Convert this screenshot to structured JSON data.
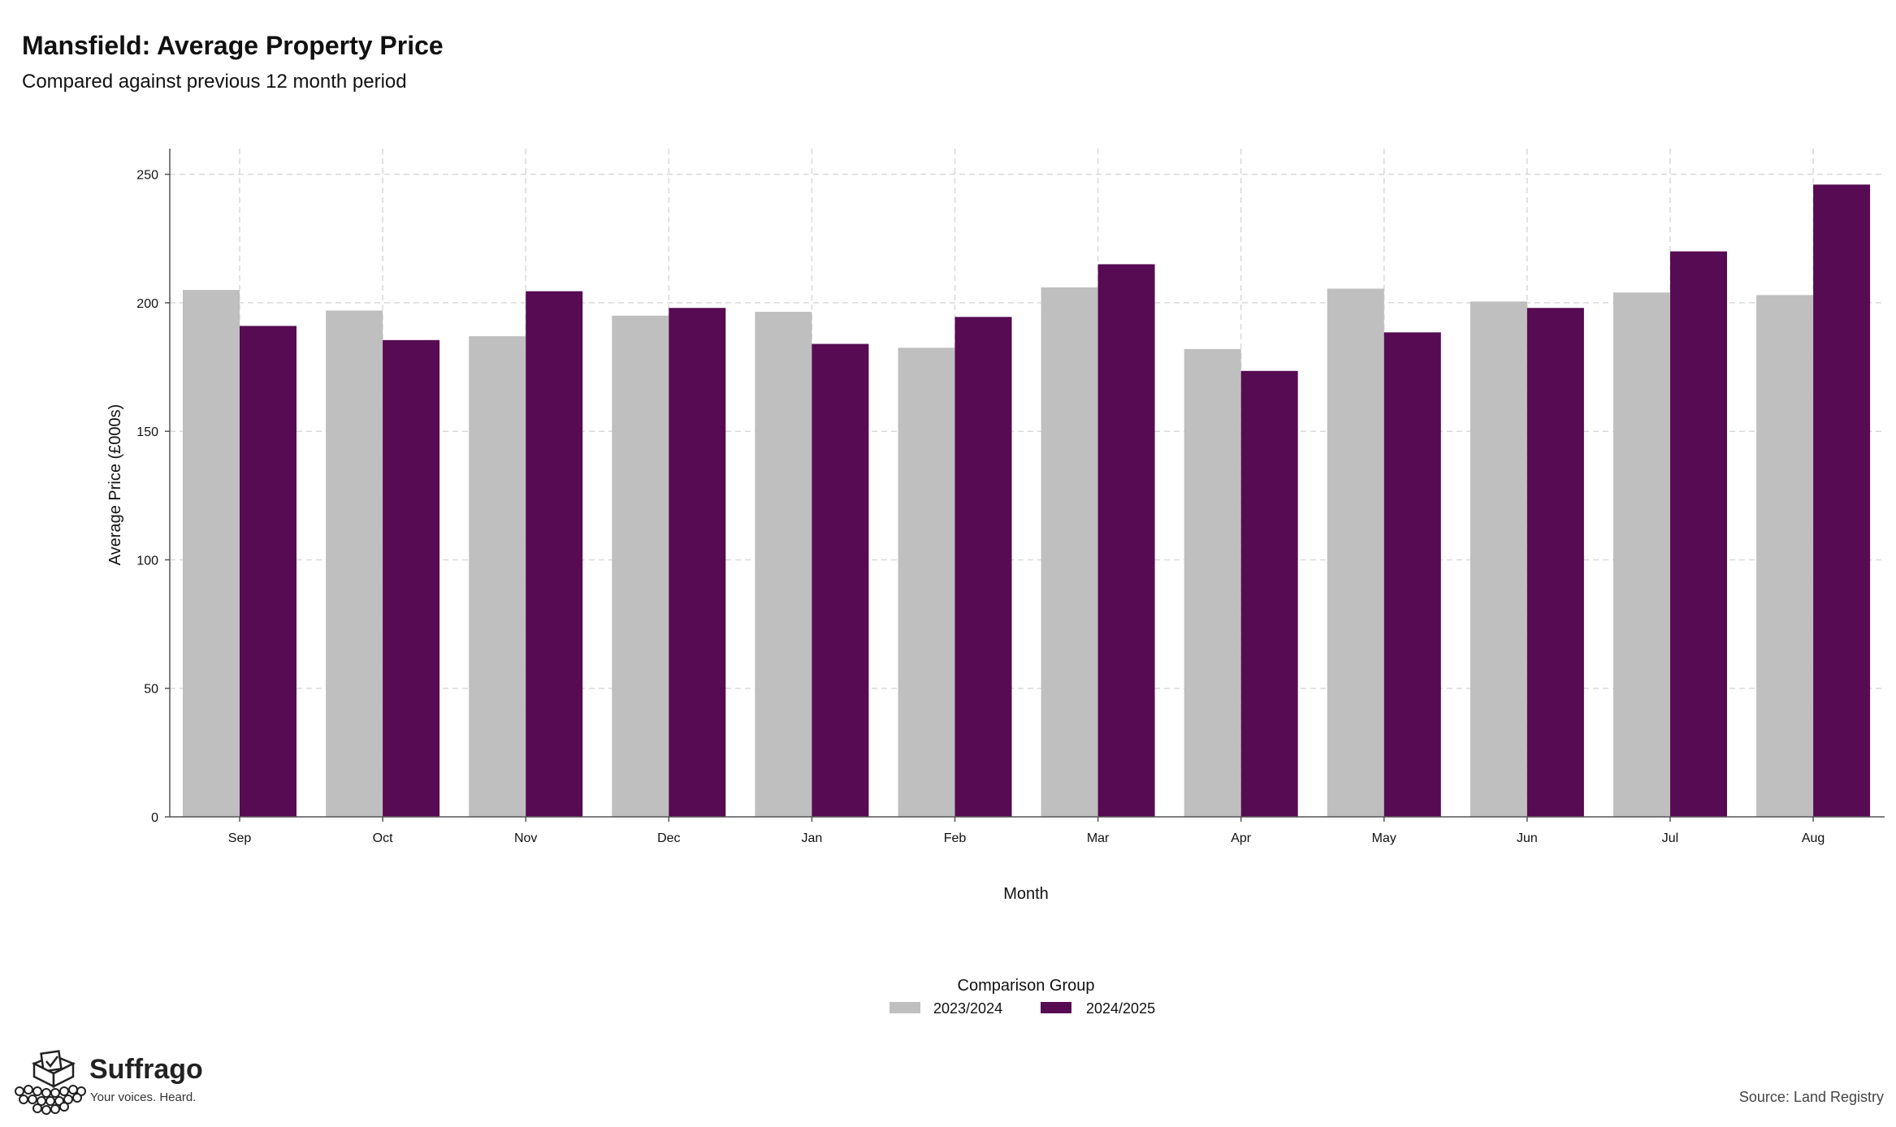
{
  "header": {
    "title": "Mansfield: Average Property Price",
    "subtitle": "Compared against previous 12 month period"
  },
  "chart_data": {
    "type": "bar",
    "categories": [
      "Sep",
      "Oct",
      "Nov",
      "Dec",
      "Jan",
      "Feb",
      "Mar",
      "Apr",
      "May",
      "Jun",
      "Jul",
      "Aug"
    ],
    "series": [
      {
        "name": "2023/2024",
        "color": "#bfbfbf",
        "values": [
          205,
          197,
          187,
          195,
          196.5,
          182.5,
          206,
          182,
          205.5,
          200.5,
          204,
          203
        ]
      },
      {
        "name": "2024/2025",
        "color": "#560b52",
        "values": [
          191,
          185.5,
          204.5,
          198,
          184,
          194.5,
          215,
          173.5,
          188.5,
          198,
          220,
          246
        ]
      }
    ],
    "xlabel": "Month",
    "ylabel": "Average Price (£000s)",
    "ylim": [
      0,
      260
    ],
    "yticks": [
      0,
      50,
      100,
      150,
      200,
      250
    ],
    "grid": true,
    "legend_title": "Comparison Group",
    "legend_position": "bottom-center"
  },
  "footer": {
    "brand_name": "Suffrago",
    "brand_tagline": "Your voices. Heard.",
    "source": "Source: Land Registry"
  }
}
